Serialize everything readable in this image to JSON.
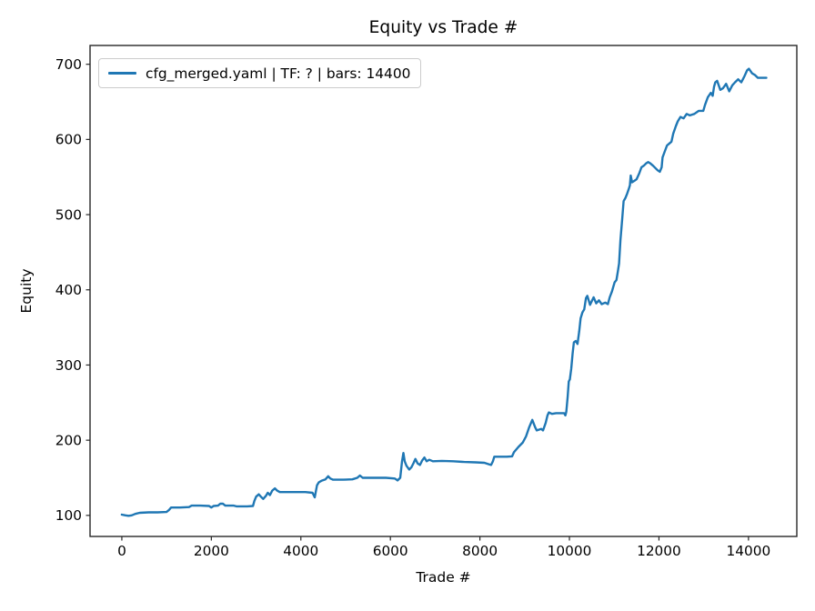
{
  "chart_data": {
    "type": "line",
    "title": "Equity vs Trade #",
    "xlabel": "Trade #",
    "ylabel": "Equity",
    "grid": false,
    "legend_position": "upper left",
    "legend": [
      {
        "label": "cfg_merged.yaml | TF: ? | bars: 14400",
        "color": "#1f77b4"
      }
    ],
    "x_ticks": [
      0,
      2000,
      4000,
      6000,
      8000,
      10000,
      12000,
      14000
    ],
    "y_ticks": [
      100,
      200,
      300,
      400,
      500,
      600,
      700
    ],
    "xlim": [
      -710,
      15080
    ],
    "ylim": [
      72,
      725
    ],
    "colors": {
      "line": "#1f77b4",
      "axis": "#262626",
      "legend_border": "#cccccc"
    },
    "series": [
      {
        "name": "cfg_merged.yaml | TF: ? | bars: 14400",
        "color": "#1f77b4",
        "points": [
          [
            0,
            101
          ],
          [
            80,
            100
          ],
          [
            150,
            99.5
          ],
          [
            220,
            100
          ],
          [
            300,
            102
          ],
          [
            400,
            103.5
          ],
          [
            600,
            104
          ],
          [
            800,
            104
          ],
          [
            1000,
            104.5
          ],
          [
            1050,
            107
          ],
          [
            1100,
            110.5
          ],
          [
            1300,
            110.5
          ],
          [
            1500,
            111
          ],
          [
            1560,
            113
          ],
          [
            1750,
            113
          ],
          [
            1950,
            112.5
          ],
          [
            2000,
            110.5
          ],
          [
            2050,
            112.5
          ],
          [
            2150,
            113
          ],
          [
            2200,
            115.5
          ],
          [
            2260,
            115.5
          ],
          [
            2310,
            113
          ],
          [
            2500,
            113
          ],
          [
            2560,
            112
          ],
          [
            2800,
            112
          ],
          [
            2930,
            112.5
          ],
          [
            2960,
            119
          ],
          [
            3000,
            125
          ],
          [
            3060,
            128
          ],
          [
            3120,
            124
          ],
          [
            3160,
            122
          ],
          [
            3220,
            126
          ],
          [
            3260,
            130
          ],
          [
            3310,
            127
          ],
          [
            3360,
            133
          ],
          [
            3420,
            136
          ],
          [
            3470,
            133
          ],
          [
            3530,
            131
          ],
          [
            3800,
            131
          ],
          [
            4100,
            131
          ],
          [
            4260,
            130
          ],
          [
            4310,
            124
          ],
          [
            4360,
            140
          ],
          [
            4400,
            144
          ],
          [
            4460,
            146
          ],
          [
            4550,
            148
          ],
          [
            4610,
            152
          ],
          [
            4660,
            149
          ],
          [
            4720,
            147.5
          ],
          [
            4950,
            147.5
          ],
          [
            5150,
            148
          ],
          [
            5260,
            150
          ],
          [
            5320,
            153
          ],
          [
            5380,
            150
          ],
          [
            5600,
            150
          ],
          [
            5900,
            150
          ],
          [
            6100,
            149
          ],
          [
            6160,
            146.5
          ],
          [
            6220,
            150
          ],
          [
            6260,
            172
          ],
          [
            6290,
            183
          ],
          [
            6320,
            172
          ],
          [
            6360,
            166
          ],
          [
            6420,
            161
          ],
          [
            6470,
            164
          ],
          [
            6520,
            170
          ],
          [
            6560,
            175
          ],
          [
            6610,
            169
          ],
          [
            6660,
            167
          ],
          [
            6710,
            173
          ],
          [
            6760,
            177
          ],
          [
            6810,
            172
          ],
          [
            6870,
            174
          ],
          [
            6950,
            172
          ],
          [
            7150,
            172.5
          ],
          [
            7400,
            172
          ],
          [
            7650,
            171
          ],
          [
            7900,
            170.5
          ],
          [
            8100,
            170
          ],
          [
            8200,
            168
          ],
          [
            8250,
            167
          ],
          [
            8290,
            172
          ],
          [
            8320,
            178
          ],
          [
            8450,
            178
          ],
          [
            8600,
            178
          ],
          [
            8720,
            178.5
          ],
          [
            8760,
            184
          ],
          [
            8860,
            191
          ],
          [
            8960,
            197
          ],
          [
            9030,
            205
          ],
          [
            9100,
            217
          ],
          [
            9170,
            227
          ],
          [
            9235,
            217
          ],
          [
            9270,
            213
          ],
          [
            9370,
            215
          ],
          [
            9410,
            213
          ],
          [
            9470,
            223
          ],
          [
            9510,
            233
          ],
          [
            9540,
            237
          ],
          [
            9610,
            235
          ],
          [
            9700,
            236
          ],
          [
            9800,
            236
          ],
          [
            9880,
            236
          ],
          [
            9910,
            233
          ],
          [
            9930,
            238
          ],
          [
            9960,
            258
          ],
          [
            9985,
            278
          ],
          [
            10010,
            281
          ],
          [
            10040,
            295
          ],
          [
            10070,
            315
          ],
          [
            10100,
            330
          ],
          [
            10140,
            332
          ],
          [
            10180,
            328
          ],
          [
            10220,
            345
          ],
          [
            10250,
            362
          ],
          [
            10290,
            370
          ],
          [
            10330,
            374
          ],
          [
            10370,
            389
          ],
          [
            10400,
            392
          ],
          [
            10460,
            380
          ],
          [
            10540,
            390
          ],
          [
            10600,
            382
          ],
          [
            10660,
            386
          ],
          [
            10720,
            381
          ],
          [
            10800,
            383
          ],
          [
            10860,
            381
          ],
          [
            10900,
            390
          ],
          [
            10950,
            398
          ],
          [
            11010,
            410
          ],
          [
            11050,
            413
          ],
          [
            11080,
            424
          ],
          [
            11110,
            435
          ],
          [
            11140,
            466
          ],
          [
            11180,
            495
          ],
          [
            11210,
            518
          ],
          [
            11250,
            522
          ],
          [
            11290,
            528
          ],
          [
            11330,
            535
          ],
          [
            11350,
            539
          ],
          [
            11370,
            552
          ],
          [
            11400,
            543
          ],
          [
            11450,
            545
          ],
          [
            11500,
            547
          ],
          [
            11560,
            555
          ],
          [
            11610,
            563
          ],
          [
            11660,
            565
          ],
          [
            11710,
            568
          ],
          [
            11760,
            570
          ],
          [
            11810,
            568
          ],
          [
            11870,
            565
          ],
          [
            11920,
            562
          ],
          [
            11970,
            559
          ],
          [
            12020,
            557
          ],
          [
            12060,
            563
          ],
          [
            12080,
            576
          ],
          [
            12130,
            584
          ],
          [
            12180,
            592
          ],
          [
            12220,
            594
          ],
          [
            12280,
            597
          ],
          [
            12320,
            608
          ],
          [
            12380,
            618
          ],
          [
            12420,
            624
          ],
          [
            12480,
            630
          ],
          [
            12550,
            628
          ],
          [
            12620,
            634
          ],
          [
            12690,
            632
          ],
          [
            12790,
            634
          ],
          [
            12890,
            638
          ],
          [
            12990,
            638
          ],
          [
            13030,
            646
          ],
          [
            13090,
            656
          ],
          [
            13160,
            662
          ],
          [
            13200,
            658
          ],
          [
            13230,
            670
          ],
          [
            13260,
            676
          ],
          [
            13300,
            678
          ],
          [
            13370,
            666
          ],
          [
            13430,
            668
          ],
          [
            13500,
            674
          ],
          [
            13570,
            664
          ],
          [
            13640,
            672
          ],
          [
            13700,
            676
          ],
          [
            13770,
            680
          ],
          [
            13840,
            676
          ],
          [
            13910,
            684
          ],
          [
            13970,
            692
          ],
          [
            14010,
            694
          ],
          [
            14080,
            688
          ],
          [
            14140,
            686
          ],
          [
            14210,
            682
          ],
          [
            14300,
            682
          ],
          [
            14400,
            682
          ]
        ]
      }
    ]
  }
}
